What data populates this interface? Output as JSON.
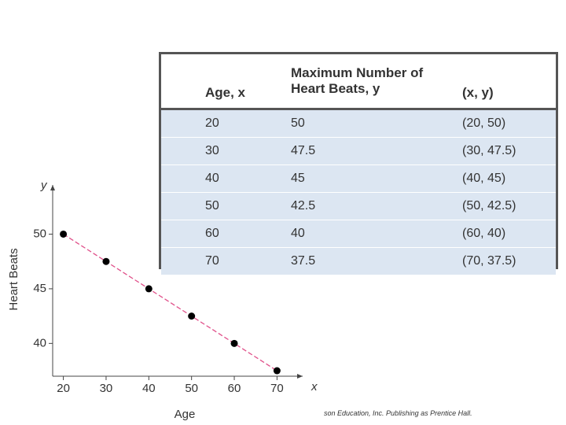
{
  "table": {
    "header": [
      "Age, x",
      "Maximum Number of Heart Beats, y",
      "(x, y)"
    ],
    "rows": [
      [
        "20",
        "50",
        "(20, 50)"
      ],
      [
        "30",
        "47.5",
        "(30, 47.5)"
      ],
      [
        "40",
        "45",
        "(40, 45)"
      ],
      [
        "50",
        "42.5",
        "(50, 42.5)"
      ],
      [
        "60",
        "40",
        "(60, 40)"
      ],
      [
        "70",
        "37.5",
        "(70, 37.5)"
      ]
    ]
  },
  "chart_data": {
    "type": "scatter",
    "x_label": "Age",
    "y_label": "Heart Beats",
    "x_axis_symbol": "x",
    "y_axis_symbol": "y",
    "x": [
      20,
      30,
      40,
      50,
      60,
      70
    ],
    "values": [
      50,
      47.5,
      45,
      42.5,
      40,
      37.5
    ],
    "color": "#000000",
    "line_color": "#e0508a",
    "xlim": [
      17.5,
      76
    ],
    "ylim": [
      37,
      54.5
    ],
    "xticks": [
      20,
      30,
      40,
      50,
      60,
      70
    ],
    "yticks": [
      40,
      45,
      50
    ]
  },
  "footer": "son Education, Inc. Publishing as Prentice Hall."
}
